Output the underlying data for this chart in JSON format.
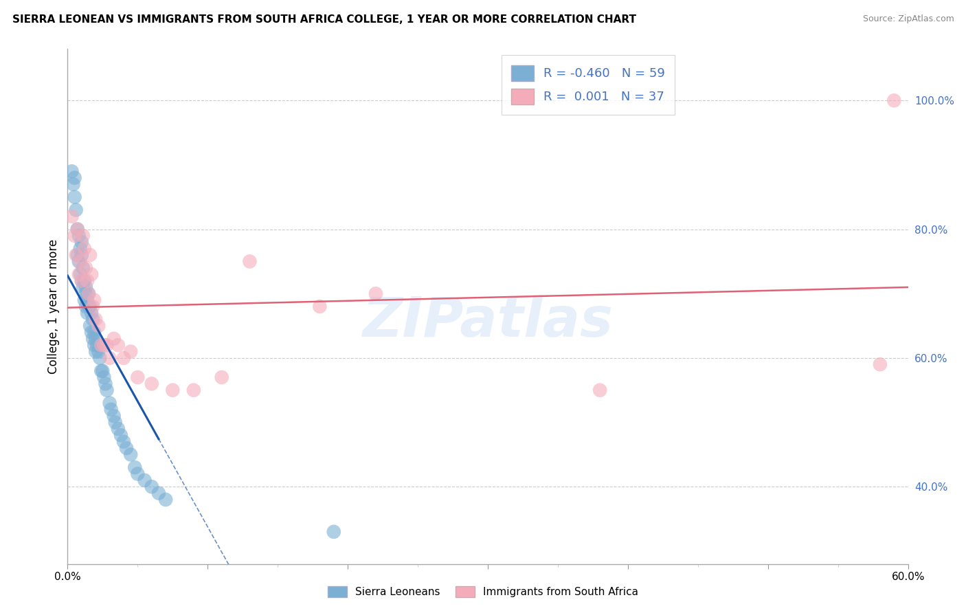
{
  "title": "SIERRA LEONEAN VS IMMIGRANTS FROM SOUTH AFRICA COLLEGE, 1 YEAR OR MORE CORRELATION CHART",
  "source": "Source: ZipAtlas.com",
  "ylabel": "College, 1 year or more",
  "xlim": [
    0.0,
    0.6
  ],
  "ylim": [
    0.28,
    1.08
  ],
  "xticks_major": [
    0.0,
    0.1,
    0.2,
    0.3,
    0.4,
    0.5,
    0.6
  ],
  "xticks_minor": [
    0.05,
    0.15,
    0.25,
    0.35,
    0.45,
    0.55
  ],
  "xticklabels": [
    "0.0%",
    "",
    "",
    "",
    "",
    "",
    "60.0%"
  ],
  "yticks_right": [
    0.4,
    0.6,
    0.8,
    1.0
  ],
  "ytick_right_labels": [
    "40.0%",
    "60.0%",
    "80.0%",
    "100.0%"
  ],
  "R_blue": -0.46,
  "N_blue": 59,
  "R_pink": 0.001,
  "N_pink": 37,
  "blue_color": "#7BAFD4",
  "pink_color": "#F4ACBB",
  "blue_line_color": "#1A55AA",
  "pink_line_color": "#E06075",
  "grid_color": "#CCCCCC",
  "watermark": "ZIPatlas",
  "watermark_color": "#AACCEE",
  "legend_label_blue": "Sierra Leoneans",
  "legend_label_pink": "Immigrants from South Africa",
  "blue_x": [
    0.003,
    0.004,
    0.005,
    0.005,
    0.006,
    0.007,
    0.007,
    0.008,
    0.008,
    0.009,
    0.009,
    0.01,
    0.01,
    0.01,
    0.011,
    0.011,
    0.012,
    0.012,
    0.013,
    0.013,
    0.013,
    0.014,
    0.014,
    0.015,
    0.015,
    0.016,
    0.016,
    0.017,
    0.017,
    0.018,
    0.018,
    0.019,
    0.019,
    0.02,
    0.02,
    0.021,
    0.022,
    0.023,
    0.024,
    0.025,
    0.026,
    0.027,
    0.028,
    0.03,
    0.031,
    0.033,
    0.034,
    0.036,
    0.038,
    0.04,
    0.042,
    0.045,
    0.048,
    0.05,
    0.055,
    0.06,
    0.065,
    0.07,
    0.19
  ],
  "blue_y": [
    0.89,
    0.87,
    0.88,
    0.85,
    0.83,
    0.8,
    0.76,
    0.79,
    0.75,
    0.77,
    0.73,
    0.72,
    0.76,
    0.78,
    0.74,
    0.71,
    0.72,
    0.69,
    0.71,
    0.7,
    0.68,
    0.69,
    0.67,
    0.7,
    0.68,
    0.68,
    0.65,
    0.67,
    0.64,
    0.66,
    0.63,
    0.64,
    0.62,
    0.63,
    0.61,
    0.62,
    0.61,
    0.6,
    0.58,
    0.58,
    0.57,
    0.56,
    0.55,
    0.53,
    0.52,
    0.51,
    0.5,
    0.49,
    0.48,
    0.47,
    0.46,
    0.45,
    0.43,
    0.42,
    0.41,
    0.4,
    0.39,
    0.38,
    0.33
  ],
  "pink_x": [
    0.003,
    0.005,
    0.006,
    0.007,
    0.008,
    0.009,
    0.01,
    0.011,
    0.012,
    0.013,
    0.014,
    0.015,
    0.016,
    0.017,
    0.018,
    0.019,
    0.02,
    0.022,
    0.024,
    0.026,
    0.028,
    0.03,
    0.033,
    0.036,
    0.04,
    0.045,
    0.05,
    0.06,
    0.075,
    0.09,
    0.11,
    0.13,
    0.18,
    0.22,
    0.38,
    0.58,
    0.59
  ],
  "pink_y": [
    0.82,
    0.79,
    0.76,
    0.8,
    0.73,
    0.75,
    0.72,
    0.79,
    0.77,
    0.74,
    0.72,
    0.7,
    0.76,
    0.73,
    0.68,
    0.69,
    0.66,
    0.65,
    0.62,
    0.62,
    0.62,
    0.6,
    0.63,
    0.62,
    0.6,
    0.61,
    0.57,
    0.56,
    0.55,
    0.55,
    0.57,
    0.75,
    0.68,
    0.7,
    0.55,
    0.59,
    1.0
  ],
  "blue_line_x_solid_start": 0.0,
  "blue_line_x_solid_end": 0.065,
  "blue_line_x_dash_end": 0.4,
  "pink_line_x_start": 0.0,
  "pink_line_x_end": 0.6
}
